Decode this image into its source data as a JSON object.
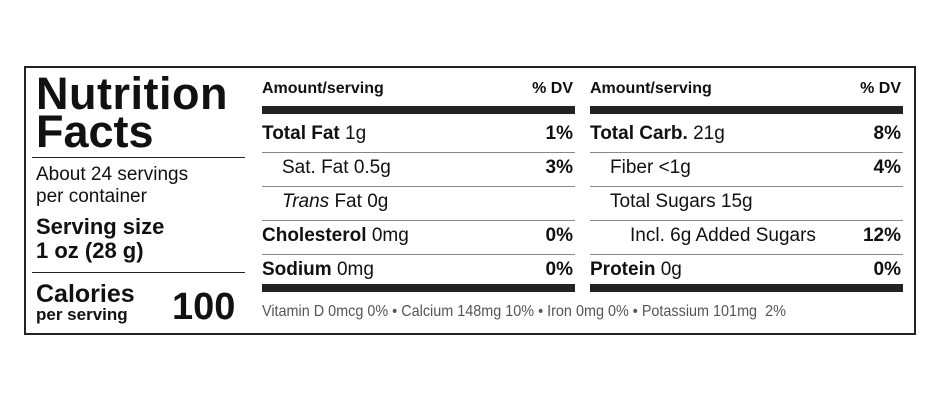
{
  "label": {
    "title_line1": "Nutrition",
    "title_line2": "Facts",
    "servings_line1": "About 24 servings",
    "servings_line2": "per container",
    "serving_size_label": "Serving size",
    "serving_size": "1 oz (28 g)",
    "calories_label": "Calories",
    "calories_sub": "per serving",
    "calories": "100",
    "columns": [
      {
        "header_amount": "Amount/serving",
        "header_dv": "% DV",
        "rows": [
          {
            "name": "Total Fat",
            "amount": "1g",
            "dv": "1%",
            "bold": true,
            "indent": 0
          },
          {
            "name": "Sat. Fat",
            "amount": "0.5g",
            "dv": "3%",
            "bold": false,
            "indent": 1
          },
          {
            "name": "Trans",
            "name_rest": "Fat",
            "amount": "0g",
            "bold": false,
            "indent": 1
          },
          {
            "name": "Cholesterol",
            "amount": "0mg",
            "dv": "0%",
            "bold": true,
            "indent": 0
          },
          {
            "name": "Sodium",
            "amount": "0mg",
            "dv": "0%",
            "bold": true,
            "indent": 0
          }
        ]
      },
      {
        "header_amount": "Amount/serving",
        "header_dv": "% DV",
        "rows": [
          {
            "name": "Total Carb.",
            "amount": "21g",
            "dv": "8%",
            "bold": true,
            "indent": 0
          },
          {
            "name": "Fiber",
            "amount": "<1g",
            "dv": "4%",
            "bold": false,
            "indent": 1
          },
          {
            "name": "Total Sugars",
            "amount": "15g",
            "bold": false,
            "indent": 1
          },
          {
            "name": "Incl. 6g Added Sugars",
            "dv": "12%",
            "bold": false,
            "indent": 2
          },
          {
            "name": "Protein",
            "amount": "0g",
            "dv": "0%",
            "bold": true,
            "indent": 0
          }
        ]
      }
    ],
    "footer": "Vitamin D 0mcg 0% • Calcium 148mg 10% • Iron 0mg 0% • Potassium 101mg  2%"
  }
}
